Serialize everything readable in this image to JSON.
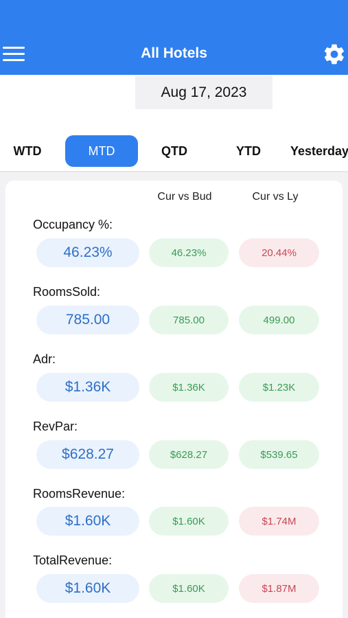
{
  "header": {
    "title": "All Hotels",
    "menu_icon": "menu-icon",
    "settings_icon": "gear-icon"
  },
  "date": "Aug 17, 2023",
  "tabs": [
    {
      "label": "WTD",
      "active": false
    },
    {
      "label": "MTD",
      "active": true
    },
    {
      "label": "QTD",
      "active": false
    },
    {
      "label": "YTD",
      "active": false
    },
    {
      "label": "Yesterday",
      "active": false
    }
  ],
  "columns": {
    "bud": "Cur vs Bud",
    "ly": "Cur vs Ly"
  },
  "metrics": [
    {
      "label": "Occupancy %:",
      "value": "46.23%",
      "bud": "46.23%",
      "ly": "20.44%",
      "bud_trend": "pos",
      "ly_trend": "neg"
    },
    {
      "label": "RoomsSold:",
      "value": "785.00",
      "bud": "785.00",
      "ly": "499.00",
      "bud_trend": "pos",
      "ly_trend": "pos"
    },
    {
      "label": "Adr:",
      "value": "$1.36K",
      "bud": "$1.36K",
      "ly": "$1.23K",
      "bud_trend": "pos",
      "ly_trend": "pos"
    },
    {
      "label": "RevPar:",
      "value": "$628.27",
      "bud": "$628.27",
      "ly": "$539.65",
      "bud_trend": "pos",
      "ly_trend": "pos"
    },
    {
      "label": "RoomsRevenue:",
      "value": "$1.60K",
      "bud": "$1.60K",
      "ly": "$1.74M",
      "bud_trend": "pos",
      "ly_trend": "neg"
    },
    {
      "label": "TotalRevenue:",
      "value": "$1.60K",
      "bud": "$1.60K",
      "ly": "$1.87M",
      "bud_trend": "pos",
      "ly_trend": "neg"
    }
  ],
  "colors": {
    "accent": "#2f80ee",
    "positive_text": "#3a9a55",
    "positive_bg": "#e6f7ea",
    "negative_text": "#c84653",
    "negative_bg": "#fbeaec"
  }
}
